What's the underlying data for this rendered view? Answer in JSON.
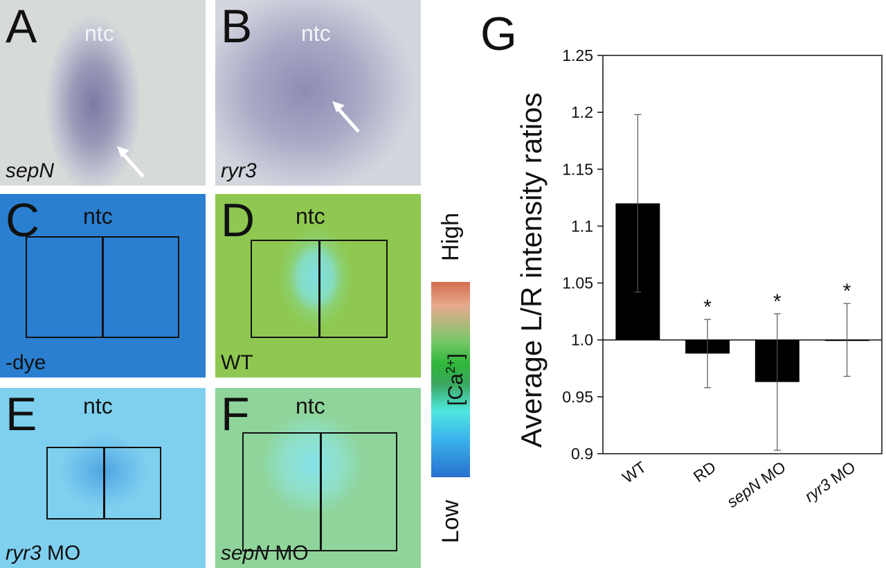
{
  "panels": {
    "a": {
      "letter": "A",
      "ntc": "ntc",
      "gene": "sepN"
    },
    "b": {
      "letter": "B",
      "ntc": "ntc",
      "gene": "ryr3"
    },
    "c": {
      "letter": "C",
      "ntc": "ntc",
      "label": "-dye"
    },
    "d": {
      "letter": "D",
      "ntc": "ntc",
      "label": "WT"
    },
    "e": {
      "letter": "E",
      "ntc": "ntc",
      "label_italic": "ryr3",
      "label_rest": " MO"
    },
    "f": {
      "letter": "F",
      "ntc": "ntc",
      "label_italic": "sepN",
      "label_rest": " MO"
    }
  },
  "colorbar": {
    "high": "High",
    "low": "Low",
    "ca_prefix": "[Ca",
    "ca_sup": "2+",
    "ca_suffix": "]"
  },
  "colors": {
    "bar": "#000000",
    "panel_c": "#2a7fd0",
    "panel_d": "#8fc850",
    "panel_e": "#7fd0ee",
    "panel_f": "#8fd49a"
  },
  "chart_data": {
    "type": "bar",
    "panel_letter": "G",
    "categories": [
      "WT",
      "RD",
      "sepN MO",
      "ryr3 MO"
    ],
    "category_italic": [
      "",
      "",
      "sepN",
      "ryr3"
    ],
    "category_rest": [
      "WT",
      "RD",
      " MO",
      " MO"
    ],
    "values": [
      1.12,
      0.988,
      0.963,
      1.0
    ],
    "error": [
      0.078,
      0.03,
      0.06,
      0.032
    ],
    "significance": [
      "",
      "*",
      "*",
      "*"
    ],
    "baseline": 1.0,
    "ylabel": "Average L/R intensity ratios",
    "ylim": [
      0.9,
      1.25
    ],
    "yticks": [
      0.9,
      0.95,
      1.0,
      1.05,
      1.1,
      1.15,
      1.2,
      1.25
    ],
    "ytick_labels": [
      "0.9",
      "0.95",
      "1.0",
      "1.05",
      "1.1",
      "1.15",
      "1.2",
      "1.25"
    ],
    "grid": false
  }
}
